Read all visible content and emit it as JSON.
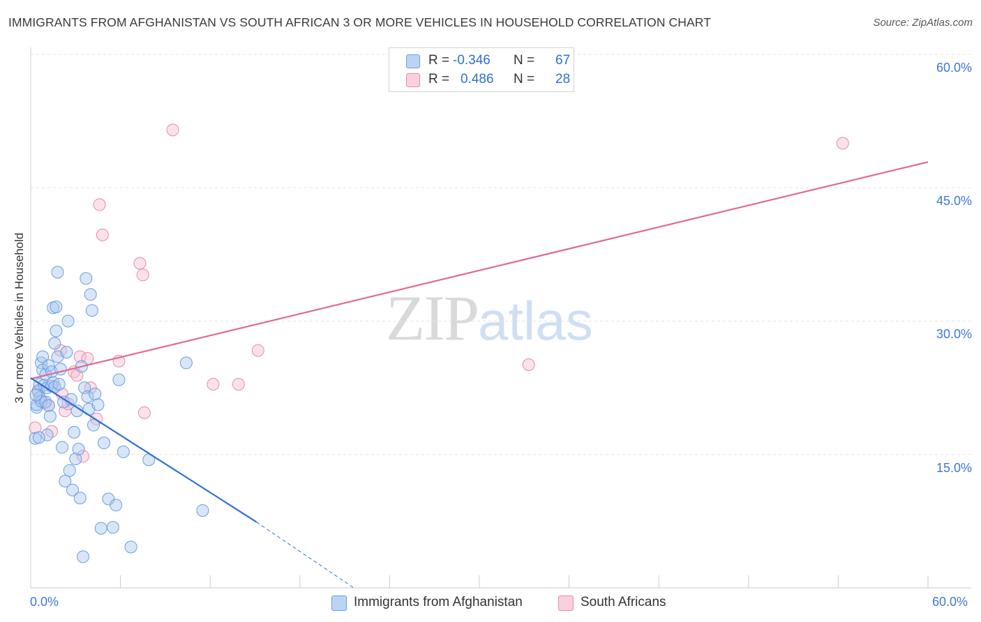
{
  "header": {
    "title": "IMMIGRANTS FROM AFGHANISTAN VS SOUTH AFRICAN 3 OR MORE VEHICLES IN HOUSEHOLD CORRELATION CHART",
    "source": "Source: ZipAtlas.com"
  },
  "watermark": {
    "zip": "ZIP",
    "atlas": "atlas"
  },
  "legend": {
    "r_label": "R =",
    "n_label": "N =",
    "rows": [
      {
        "r": "-0.346",
        "n": "67"
      },
      {
        "r": "0.486",
        "n": "28"
      }
    ]
  },
  "colors": {
    "blue_fill": "#a9c7f0",
    "blue_stroke": "#6a9ee0",
    "blue_line": "#2f6fd8",
    "pink_fill": "#f6bfd0",
    "pink_stroke": "#e98aaa",
    "pink_line": "#e06a93"
  },
  "chart_data": {
    "type": "scatter",
    "title": "IMMIGRANTS FROM AFGHANISTAN VS SOUTH AFRICAN 3 OR MORE VEHICLES IN HOUSEHOLD CORRELATION CHART",
    "xlabel": "",
    "ylabel": "3 or more Vehicles in Household",
    "xlim": [
      0,
      60
    ],
    "ylim": [
      0,
      60
    ],
    "x_tick_labels": [
      "0.0%",
      "60.0%"
    ],
    "y_ticks": [
      15,
      30,
      45,
      60
    ],
    "y_tick_labels": [
      "15.0%",
      "30.0%",
      "45.0%",
      "60.0%"
    ],
    "grid": true,
    "legend_position": "bottom",
    "series": [
      {
        "name": "Immigrants from Afghanistan",
        "r": -0.346,
        "n": 67,
        "points": [
          [
            0.3,
            16.8
          ],
          [
            0.4,
            20.3
          ],
          [
            0.4,
            20.6
          ],
          [
            0.5,
            22.1
          ],
          [
            0.6,
            21.4
          ],
          [
            0.6,
            22.9
          ],
          [
            0.7,
            21.0
          ],
          [
            0.7,
            25.3
          ],
          [
            0.8,
            26.0
          ],
          [
            0.8,
            24.5
          ],
          [
            0.9,
            22.8
          ],
          [
            1.0,
            20.9
          ],
          [
            1.0,
            24.0
          ],
          [
            1.1,
            17.2
          ],
          [
            1.1,
            22.5
          ],
          [
            1.2,
            25.0
          ],
          [
            1.2,
            20.5
          ],
          [
            1.3,
            19.3
          ],
          [
            1.4,
            22.7
          ],
          [
            1.4,
            24.3
          ],
          [
            1.5,
            31.5
          ],
          [
            1.5,
            23.1
          ],
          [
            1.6,
            22.6
          ],
          [
            1.6,
            27.5
          ],
          [
            1.7,
            31.6
          ],
          [
            1.7,
            28.9
          ],
          [
            1.8,
            35.5
          ],
          [
            1.8,
            26.0
          ],
          [
            1.9,
            22.9
          ],
          [
            2.0,
            24.6
          ],
          [
            2.1,
            15.8
          ],
          [
            2.2,
            20.9
          ],
          [
            2.3,
            12.0
          ],
          [
            2.4,
            26.5
          ],
          [
            2.5,
            30.0
          ],
          [
            2.6,
            13.2
          ],
          [
            2.7,
            21.2
          ],
          [
            2.8,
            11.0
          ],
          [
            2.9,
            17.5
          ],
          [
            3.0,
            14.5
          ],
          [
            3.1,
            19.9
          ],
          [
            3.2,
            15.6
          ],
          [
            3.3,
            10.1
          ],
          [
            3.4,
            24.9
          ],
          [
            3.5,
            3.5
          ],
          [
            3.6,
            22.5
          ],
          [
            3.7,
            34.8
          ],
          [
            3.8,
            21.5
          ],
          [
            3.9,
            20.1
          ],
          [
            4.0,
            33.0
          ],
          [
            4.1,
            31.2
          ],
          [
            4.2,
            18.3
          ],
          [
            4.3,
            21.8
          ],
          [
            4.5,
            20.6
          ],
          [
            4.7,
            6.7
          ],
          [
            4.9,
            16.3
          ],
          [
            5.2,
            10.0
          ],
          [
            5.5,
            6.8
          ],
          [
            5.7,
            9.3
          ],
          [
            5.9,
            23.4
          ],
          [
            6.2,
            15.3
          ],
          [
            6.7,
            4.6
          ],
          [
            7.9,
            14.4
          ],
          [
            10.4,
            25.3
          ],
          [
            11.5,
            8.7
          ],
          [
            0.35,
            21.7
          ],
          [
            0.55,
            16.9
          ]
        ]
      },
      {
        "name": "South Africans",
        "r": 0.486,
        "n": 28,
        "points": [
          [
            0.3,
            18.0
          ],
          [
            0.5,
            22.2
          ],
          [
            0.9,
            20.8
          ],
          [
            1.2,
            20.5
          ],
          [
            1.4,
            17.6
          ],
          [
            2.0,
            26.7
          ],
          [
            2.1,
            21.8
          ],
          [
            2.3,
            19.9
          ],
          [
            2.5,
            20.7
          ],
          [
            2.9,
            24.3
          ],
          [
            3.1,
            23.9
          ],
          [
            3.3,
            26.0
          ],
          [
            3.5,
            14.8
          ],
          [
            3.8,
            25.8
          ],
          [
            4.0,
            22.5
          ],
          [
            4.4,
            19.0
          ],
          [
            4.6,
            43.1
          ],
          [
            4.8,
            39.7
          ],
          [
            5.9,
            25.5
          ],
          [
            7.3,
            36.5
          ],
          [
            7.5,
            35.2
          ],
          [
            7.6,
            19.7
          ],
          [
            9.5,
            51.5
          ],
          [
            12.2,
            22.9
          ],
          [
            13.9,
            22.9
          ],
          [
            15.2,
            26.7
          ],
          [
            33.3,
            25.1
          ],
          [
            54.3,
            50.0
          ]
        ]
      }
    ],
    "trend_lines": [
      {
        "series": "Immigrants from Afghanistan",
        "x": [
          0.0,
          15.1
        ],
        "y": [
          23.6,
          7.4
        ],
        "dashed_extension_x": [
          15.1,
          21.6
        ],
        "dashed_extension_y": [
          7.4,
          0.0
        ]
      },
      {
        "series": "South Africans",
        "x": [
          0.0,
          60.0
        ],
        "y": [
          23.5,
          47.9
        ]
      }
    ]
  }
}
